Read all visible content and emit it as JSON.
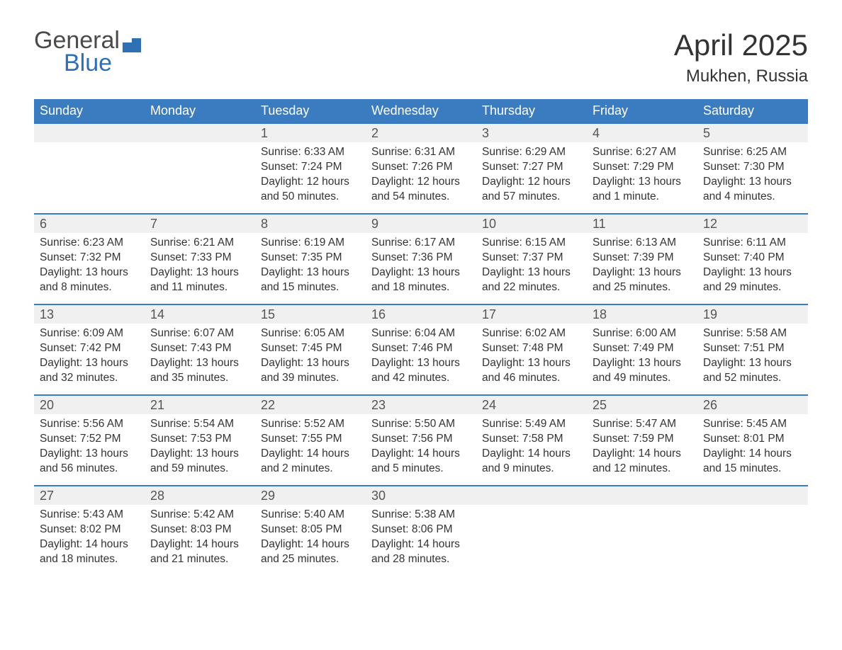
{
  "logo": {
    "line1": "General",
    "line2": "Blue"
  },
  "title": {
    "month": "April 2025",
    "location": "Mukhen, Russia"
  },
  "colors": {
    "header_bg": "#3b7bbf",
    "header_text": "#ffffff",
    "daynum_bg": "#f0f0f0",
    "week_border": "#3b7bbf",
    "body_text": "#333333",
    "logo_gray": "#4a4a4a",
    "logo_blue": "#2f6fb3",
    "page_bg": "#ffffff"
  },
  "weekdays": [
    "Sunday",
    "Monday",
    "Tuesday",
    "Wednesday",
    "Thursday",
    "Friday",
    "Saturday"
  ],
  "labels": {
    "sunrise": "Sunrise: ",
    "sunset": "Sunset: ",
    "daylight": "Daylight: "
  },
  "weeks": [
    [
      null,
      null,
      {
        "d": "1",
        "sr": "6:33 AM",
        "ss": "7:24 PM",
        "dl": "12 hours and 50 minutes."
      },
      {
        "d": "2",
        "sr": "6:31 AM",
        "ss": "7:26 PM",
        "dl": "12 hours and 54 minutes."
      },
      {
        "d": "3",
        "sr": "6:29 AM",
        "ss": "7:27 PM",
        "dl": "12 hours and 57 minutes."
      },
      {
        "d": "4",
        "sr": "6:27 AM",
        "ss": "7:29 PM",
        "dl": "13 hours and 1 minute."
      },
      {
        "d": "5",
        "sr": "6:25 AM",
        "ss": "7:30 PM",
        "dl": "13 hours and 4 minutes."
      }
    ],
    [
      {
        "d": "6",
        "sr": "6:23 AM",
        "ss": "7:32 PM",
        "dl": "13 hours and 8 minutes."
      },
      {
        "d": "7",
        "sr": "6:21 AM",
        "ss": "7:33 PM",
        "dl": "13 hours and 11 minutes."
      },
      {
        "d": "8",
        "sr": "6:19 AM",
        "ss": "7:35 PM",
        "dl": "13 hours and 15 minutes."
      },
      {
        "d": "9",
        "sr": "6:17 AM",
        "ss": "7:36 PM",
        "dl": "13 hours and 18 minutes."
      },
      {
        "d": "10",
        "sr": "6:15 AM",
        "ss": "7:37 PM",
        "dl": "13 hours and 22 minutes."
      },
      {
        "d": "11",
        "sr": "6:13 AM",
        "ss": "7:39 PM",
        "dl": "13 hours and 25 minutes."
      },
      {
        "d": "12",
        "sr": "6:11 AM",
        "ss": "7:40 PM",
        "dl": "13 hours and 29 minutes."
      }
    ],
    [
      {
        "d": "13",
        "sr": "6:09 AM",
        "ss": "7:42 PM",
        "dl": "13 hours and 32 minutes."
      },
      {
        "d": "14",
        "sr": "6:07 AM",
        "ss": "7:43 PM",
        "dl": "13 hours and 35 minutes."
      },
      {
        "d": "15",
        "sr": "6:05 AM",
        "ss": "7:45 PM",
        "dl": "13 hours and 39 minutes."
      },
      {
        "d": "16",
        "sr": "6:04 AM",
        "ss": "7:46 PM",
        "dl": "13 hours and 42 minutes."
      },
      {
        "d": "17",
        "sr": "6:02 AM",
        "ss": "7:48 PM",
        "dl": "13 hours and 46 minutes."
      },
      {
        "d": "18",
        "sr": "6:00 AM",
        "ss": "7:49 PM",
        "dl": "13 hours and 49 minutes."
      },
      {
        "d": "19",
        "sr": "5:58 AM",
        "ss": "7:51 PM",
        "dl": "13 hours and 52 minutes."
      }
    ],
    [
      {
        "d": "20",
        "sr": "5:56 AM",
        "ss": "7:52 PM",
        "dl": "13 hours and 56 minutes."
      },
      {
        "d": "21",
        "sr": "5:54 AM",
        "ss": "7:53 PM",
        "dl": "13 hours and 59 minutes."
      },
      {
        "d": "22",
        "sr": "5:52 AM",
        "ss": "7:55 PM",
        "dl": "14 hours and 2 minutes."
      },
      {
        "d": "23",
        "sr": "5:50 AM",
        "ss": "7:56 PM",
        "dl": "14 hours and 5 minutes."
      },
      {
        "d": "24",
        "sr": "5:49 AM",
        "ss": "7:58 PM",
        "dl": "14 hours and 9 minutes."
      },
      {
        "d": "25",
        "sr": "5:47 AM",
        "ss": "7:59 PM",
        "dl": "14 hours and 12 minutes."
      },
      {
        "d": "26",
        "sr": "5:45 AM",
        "ss": "8:01 PM",
        "dl": "14 hours and 15 minutes."
      }
    ],
    [
      {
        "d": "27",
        "sr": "5:43 AM",
        "ss": "8:02 PM",
        "dl": "14 hours and 18 minutes."
      },
      {
        "d": "28",
        "sr": "5:42 AM",
        "ss": "8:03 PM",
        "dl": "14 hours and 21 minutes."
      },
      {
        "d": "29",
        "sr": "5:40 AM",
        "ss": "8:05 PM",
        "dl": "14 hours and 25 minutes."
      },
      {
        "d": "30",
        "sr": "5:38 AM",
        "ss": "8:06 PM",
        "dl": "14 hours and 28 minutes."
      },
      null,
      null,
      null
    ]
  ]
}
